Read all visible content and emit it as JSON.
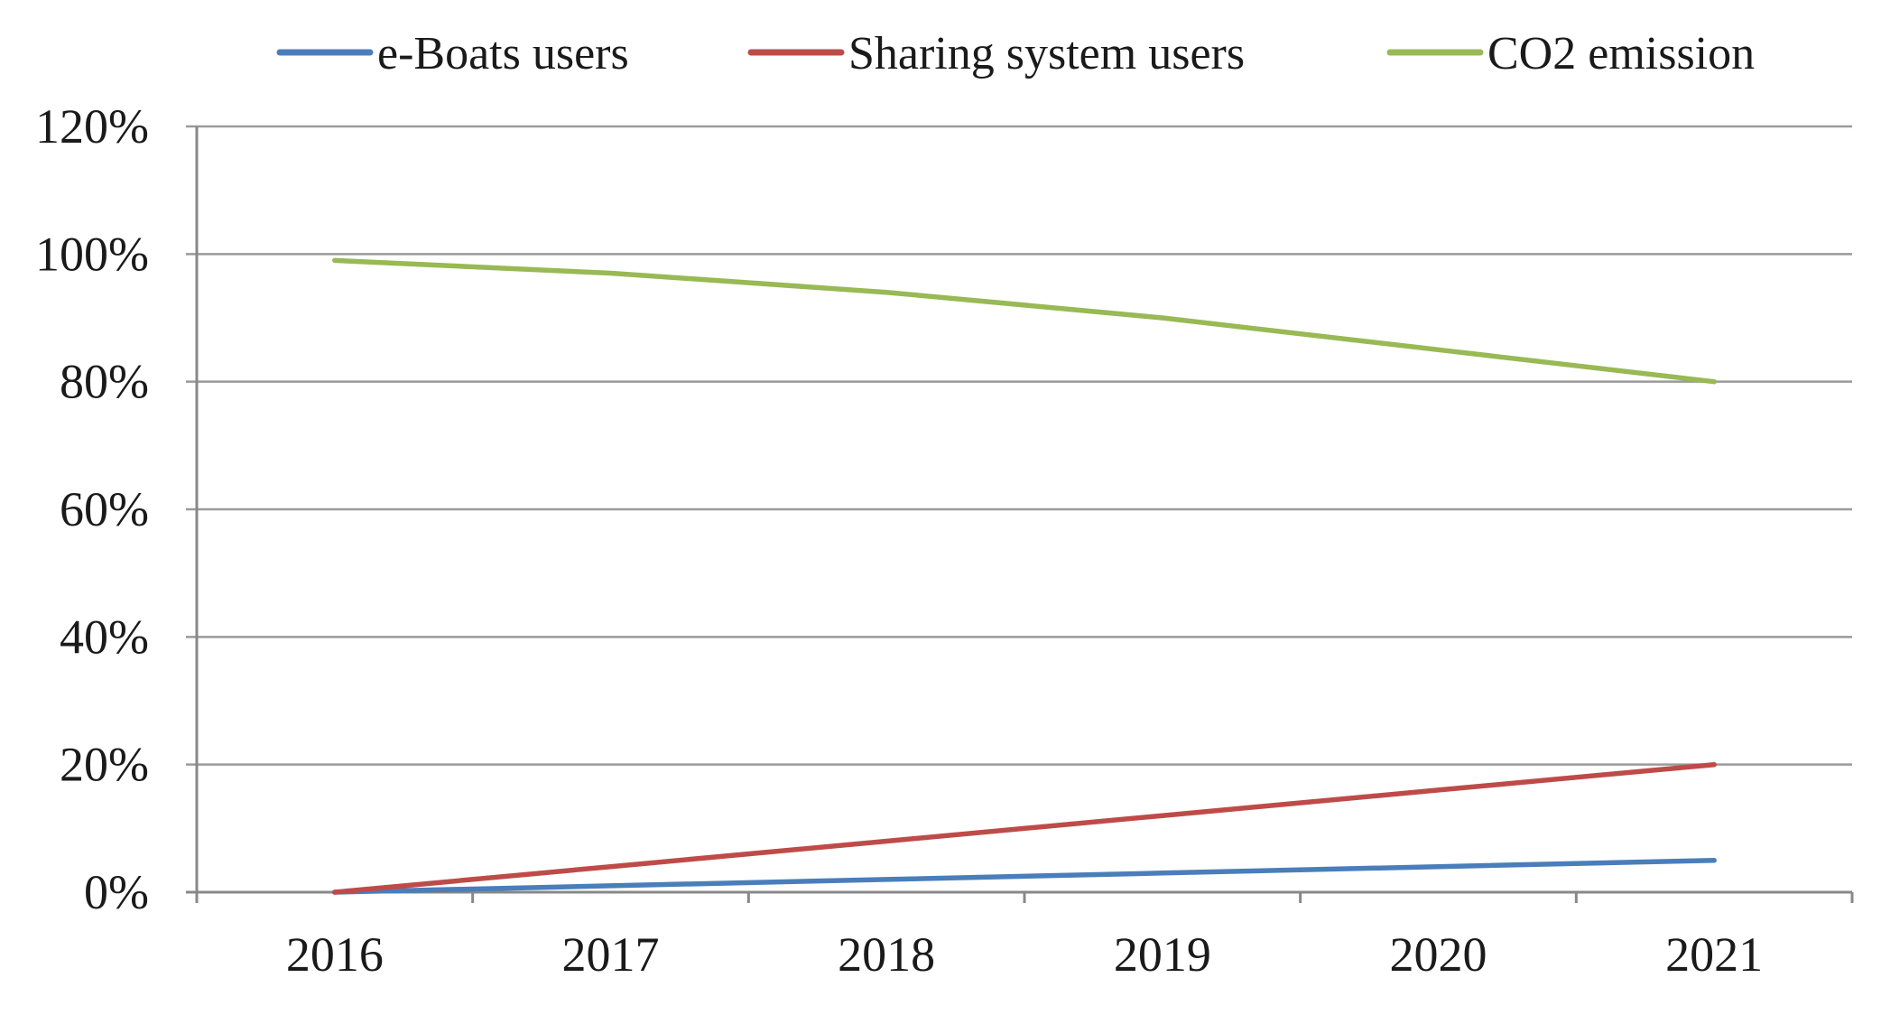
{
  "chart_data": {
    "type": "line",
    "title": "",
    "xlabel": "",
    "ylabel": "",
    "categories": [
      "2016",
      "2017",
      "2018",
      "2019",
      "2020",
      "2021"
    ],
    "ylim": [
      0,
      120
    ],
    "yticks": [
      0,
      20,
      40,
      60,
      80,
      100,
      120
    ],
    "ytick_labels": [
      "0%",
      "20%",
      "40%",
      "60%",
      "80%",
      "100%",
      "120%"
    ],
    "grid": true,
    "legend_position": "top",
    "series": [
      {
        "name": "e-Boats users",
        "color": "#4a7ebb",
        "values": [
          0,
          1,
          2,
          3,
          4,
          5
        ]
      },
      {
        "name": "Sharing system users",
        "color": "#be4b48",
        "values": [
          0,
          4,
          8,
          12,
          16,
          20
        ]
      },
      {
        "name": "CO2 emission",
        "color": "#98b954",
        "values": [
          99,
          97,
          94,
          90,
          85,
          80
        ]
      }
    ]
  }
}
